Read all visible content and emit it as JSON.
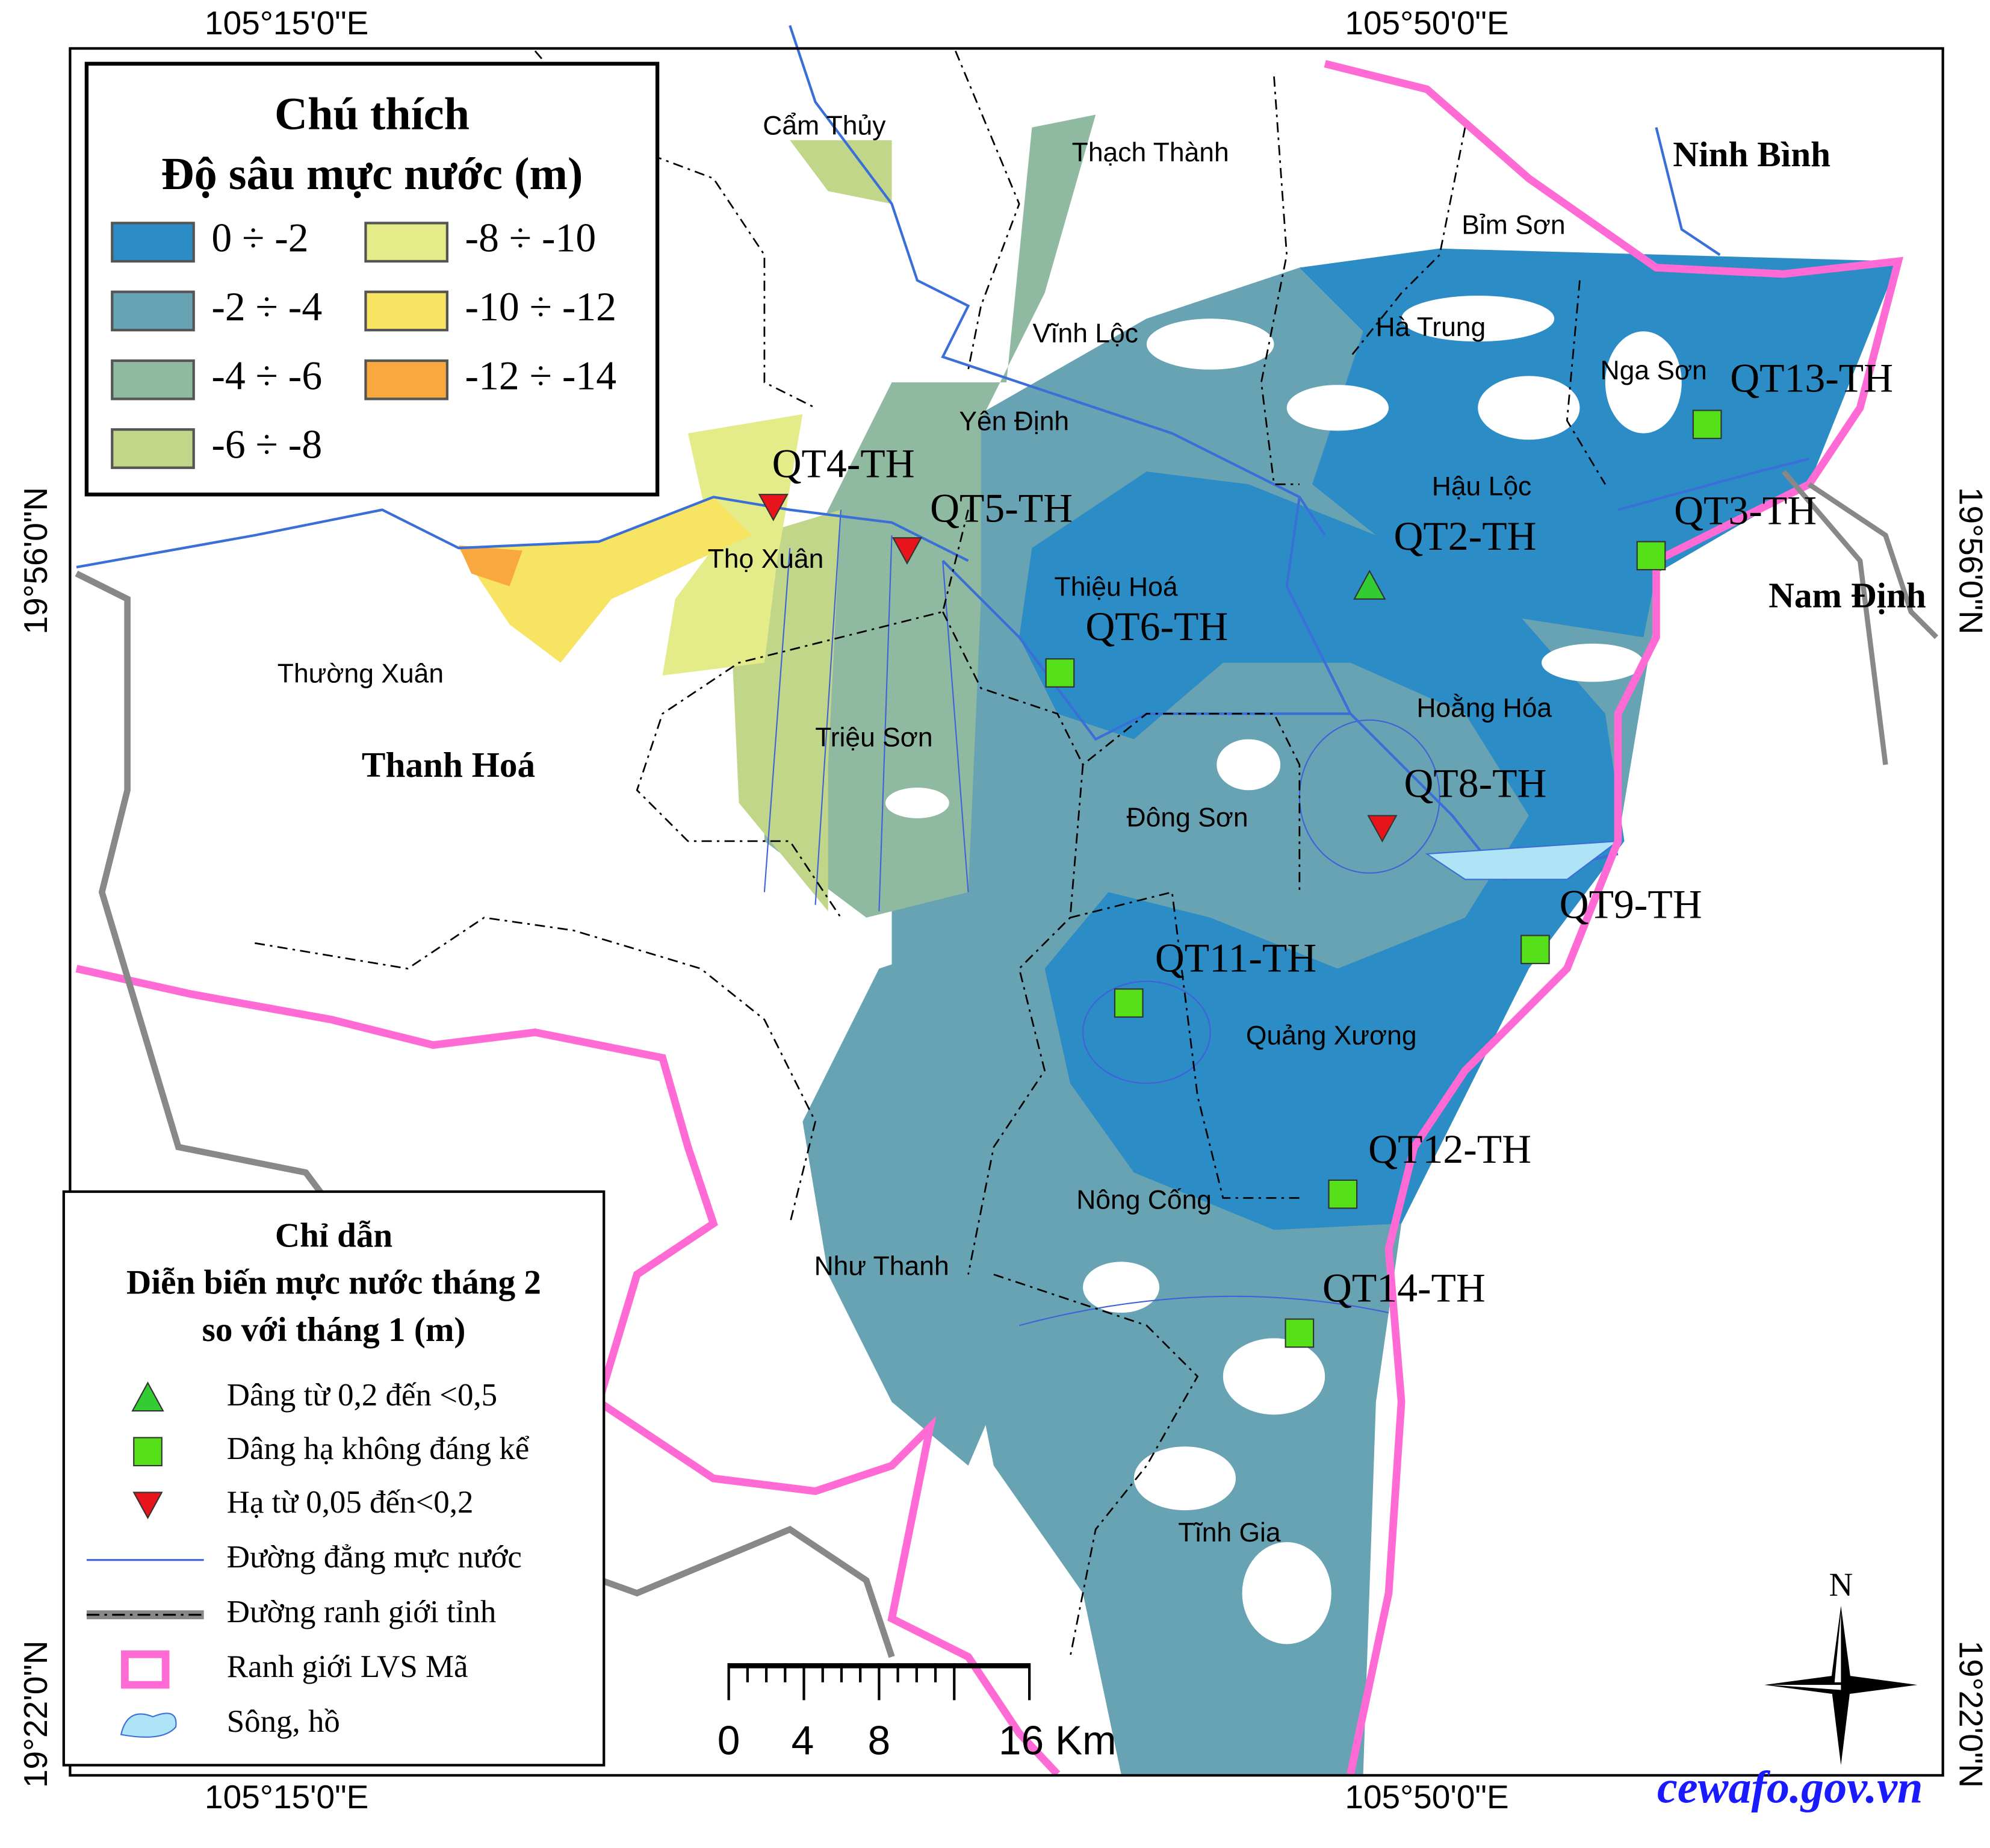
{
  "coordinates": {
    "top": [
      "105°15'0\"E",
      "105°50'0\"E"
    ],
    "bottom": [
      "105°15'0\"E",
      "105°50'0\"E"
    ],
    "left": [
      "19°56'0\"N",
      "19°22'0\"N"
    ],
    "right": [
      "19°56'0\"N",
      "19°22'0\"N"
    ]
  },
  "legend": {
    "title": "Chú thích",
    "subtitle": "Độ sâu mực nước (m)",
    "items": [
      {
        "label": "0 ÷ -2",
        "color": "#2b8cc6"
      },
      {
        "label": "-2 ÷ -4",
        "color": "#67a3b3"
      },
      {
        "label": "-4 ÷ -6",
        "color": "#8fb9a0"
      },
      {
        "label": "-6 ÷ -8",
        "color": "#c2d68a"
      },
      {
        "label": "-8 ÷ -10",
        "color": "#e4ec8a"
      },
      {
        "label": "-10 ÷ -12",
        "color": "#f7e463"
      },
      {
        "label": "-12 ÷ -14",
        "color": "#f9a840"
      }
    ]
  },
  "guide": {
    "title": [
      "Chỉ dẫn",
      "Diễn biến mực nước tháng 2",
      "so với tháng 1 (m)"
    ],
    "symbols": [
      {
        "label": "Dâng từ 0,2 đến <0,5",
        "stations": [
          "QT2-TH"
        ]
      },
      {
        "label": "Dâng hạ không đáng kể",
        "stations": [
          "QT6-TH",
          "QT9-TH",
          "QT11-TH",
          "QT12-TH",
          "QT14-TH",
          "QT13-TH",
          "QT3-TH"
        ]
      },
      {
        "label": "Hạ từ 0,05 đến<0,2",
        "stations": [
          "QT4-TH",
          "QT5-TH",
          "QT8-TH"
        ]
      }
    ],
    "lines": [
      "Đường đẳng mực nước",
      "Đường ranh giới tỉnh",
      "Ranh giới LVS Mã",
      "Sông, hồ"
    ]
  },
  "places": [
    "Cẩm Thủy",
    "Thạch Thành",
    "Ninh Bình",
    "Bỉm Sơn",
    "Hà Trung",
    "Vĩnh Lộc",
    "Nga Sơn",
    "Yên Định",
    "Hậu Lộc",
    "Thọ Xuân",
    "Thiệu Hoá",
    "Nam Định",
    "Thường Xuân",
    "Hoằng Hóa",
    "Thanh Hoá",
    "Triệu Sơn",
    "Đông Sơn",
    "Quảng Xương",
    "Nông Cống",
    "Như Thanh",
    "Tĩnh Gia"
  ],
  "scale": [
    "0",
    "4",
    "8",
    "16 Km"
  ],
  "north": "N",
  "source": "cewafo.gov.vn"
}
